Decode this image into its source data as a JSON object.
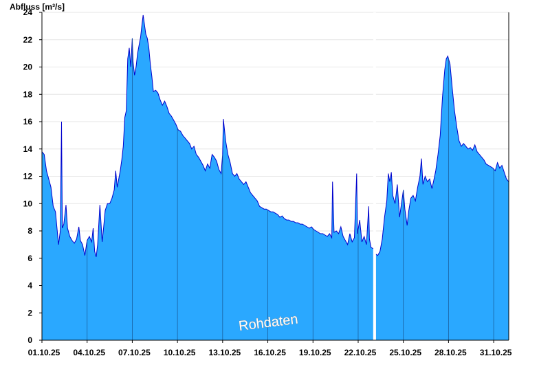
{
  "chart_data": {
    "type": "area",
    "ylabel": "Abfluss [m³/s]",
    "watermark": "Rohdaten",
    "ylim": [
      0,
      24
    ],
    "yticks": [
      0,
      2,
      4,
      6,
      8,
      10,
      12,
      14,
      16,
      18,
      20,
      22,
      24
    ],
    "xlim": [
      1.0,
      32.0
    ],
    "xticks": [
      {
        "x": 1.0,
        "label": "01.10.25"
      },
      {
        "x": 4.0,
        "label": "04.10.25"
      },
      {
        "x": 7.0,
        "label": "07.10.25"
      },
      {
        "x": 10.0,
        "label": "10.10.25"
      },
      {
        "x": 13.0,
        "label": "13.10.25"
      },
      {
        "x": 16.0,
        "label": "16.10.25"
      },
      {
        "x": 19.0,
        "label": "19.10.25"
      },
      {
        "x": 22.0,
        "label": "22.10.25"
      },
      {
        "x": 25.0,
        "label": "25.10.25"
      },
      {
        "x": 28.0,
        "label": "28.10.25"
      },
      {
        "x": 31.0,
        "label": "31.10.25"
      }
    ],
    "grid": true,
    "colors": {
      "fill": "#2aa8ff",
      "line": "#0000cc",
      "gap": "#ffffff",
      "grid": "#e6e6e6"
    },
    "gap": [
      23.0,
      23.18
    ],
    "series": [
      {
        "segments": [
          [
            [
              1.0,
              13.8
            ],
            [
              1.15,
              13.6
            ],
            [
              1.3,
              12.4
            ],
            [
              1.45,
              11.8
            ],
            [
              1.6,
              11.2
            ],
            [
              1.75,
              9.8
            ],
            [
              1.9,
              9.4
            ],
            [
              2.0,
              8.2
            ],
            [
              2.1,
              7.0
            ],
            [
              2.22,
              8.0
            ],
            [
              2.3,
              16.0
            ],
            [
              2.35,
              8.2
            ],
            [
              2.45,
              8.5
            ],
            [
              2.6,
              9.9
            ],
            [
              2.7,
              8.2
            ],
            [
              2.85,
              7.6
            ],
            [
              3.0,
              7.3
            ],
            [
              3.15,
              7.1
            ],
            [
              3.3,
              7.4
            ],
            [
              3.45,
              8.3
            ],
            [
              3.55,
              7.3
            ],
            [
              3.7,
              7.0
            ],
            [
              3.85,
              6.2
            ],
            [
              4.0,
              7.3
            ],
            [
              4.15,
              7.6
            ],
            [
              4.3,
              7.2
            ],
            [
              4.4,
              8.2
            ],
            [
              4.5,
              6.5
            ],
            [
              4.6,
              6.1
            ],
            [
              4.7,
              7.0
            ],
            [
              4.85,
              9.9
            ],
            [
              5.0,
              7.2
            ],
            [
              5.1,
              8.3
            ],
            [
              5.2,
              9.5
            ],
            [
              5.35,
              10.0
            ],
            [
              5.5,
              10.0
            ],
            [
              5.65,
              10.4
            ],
            [
              5.8,
              11.0
            ],
            [
              5.9,
              12.4
            ],
            [
              6.0,
              11.2
            ],
            [
              6.1,
              11.8
            ],
            [
              6.2,
              12.4
            ],
            [
              6.3,
              13.2
            ],
            [
              6.4,
              14.2
            ],
            [
              6.5,
              16.3
            ],
            [
              6.6,
              16.8
            ],
            [
              6.7,
              20.6
            ],
            [
              6.8,
              21.4
            ],
            [
              6.9,
              20.0
            ],
            [
              7.0,
              22.1
            ],
            [
              7.05,
              20.4
            ],
            [
              7.15,
              19.4
            ],
            [
              7.25,
              20.0
            ],
            [
              7.35,
              21.0
            ],
            [
              7.45,
              21.6
            ],
            [
              7.55,
              22.2
            ],
            [
              7.65,
              23.2
            ],
            [
              7.72,
              23.8
            ],
            [
              7.8,
              23.2
            ],
            [
              7.9,
              22.4
            ],
            [
              8.0,
              22.1
            ],
            [
              8.1,
              21.4
            ],
            [
              8.2,
              20.2
            ],
            [
              8.3,
              19.3
            ],
            [
              8.4,
              18.2
            ],
            [
              8.55,
              18.3
            ],
            [
              8.7,
              18.1
            ],
            [
              8.85,
              17.6
            ],
            [
              9.0,
              17.2
            ],
            [
              9.15,
              17.5
            ],
            [
              9.3,
              17.1
            ],
            [
              9.45,
              16.6
            ],
            [
              9.6,
              16.4
            ],
            [
              9.75,
              16.1
            ],
            [
              9.9,
              15.8
            ],
            [
              10.05,
              15.4
            ],
            [
              10.2,
              15.3
            ],
            [
              10.35,
              15.0
            ],
            [
              10.5,
              14.8
            ],
            [
              10.65,
              14.6
            ],
            [
              10.8,
              14.4
            ],
            [
              10.95,
              14.0
            ],
            [
              11.1,
              14.2
            ],
            [
              11.25,
              13.6
            ],
            [
              11.4,
              13.4
            ],
            [
              11.55,
              13.1
            ],
            [
              11.7,
              12.8
            ],
            [
              11.85,
              12.4
            ],
            [
              12.0,
              12.9
            ],
            [
              12.15,
              12.6
            ],
            [
              12.3,
              13.6
            ],
            [
              12.45,
              13.4
            ],
            [
              12.6,
              13.1
            ],
            [
              12.75,
              12.5
            ],
            [
              12.9,
              12.2
            ],
            [
              13.0,
              13.6
            ],
            [
              13.05,
              16.2
            ],
            [
              13.2,
              14.6
            ],
            [
              13.35,
              13.6
            ],
            [
              13.5,
              13.0
            ],
            [
              13.65,
              12.2
            ],
            [
              13.8,
              12.0
            ],
            [
              13.95,
              12.2
            ],
            [
              14.1,
              11.8
            ],
            [
              14.25,
              11.6
            ],
            [
              14.4,
              11.4
            ],
            [
              14.55,
              11.6
            ],
            [
              14.7,
              11.2
            ],
            [
              14.85,
              10.8
            ],
            [
              15.0,
              10.6
            ],
            [
              15.15,
              10.4
            ],
            [
              15.3,
              10.2
            ],
            [
              15.45,
              9.8
            ],
            [
              15.6,
              9.7
            ],
            [
              15.75,
              9.6
            ],
            [
              15.9,
              9.6
            ],
            [
              16.05,
              9.5
            ],
            [
              16.2,
              9.4
            ],
            [
              16.35,
              9.4
            ],
            [
              16.5,
              9.3
            ],
            [
              16.65,
              9.2
            ],
            [
              16.8,
              9.0
            ],
            [
              16.95,
              9.1
            ],
            [
              17.1,
              8.9
            ],
            [
              17.25,
              8.8
            ],
            [
              17.4,
              8.8
            ],
            [
              17.55,
              8.7
            ],
            [
              17.7,
              8.7
            ],
            [
              17.85,
              8.6
            ],
            [
              18.0,
              8.6
            ],
            [
              18.15,
              8.5
            ],
            [
              18.3,
              8.5
            ],
            [
              18.45,
              8.4
            ],
            [
              18.6,
              8.3
            ],
            [
              18.75,
              8.2
            ],
            [
              18.9,
              8.3
            ],
            [
              19.05,
              8.1
            ],
            [
              19.2,
              8.0
            ],
            [
              19.35,
              7.9
            ],
            [
              19.5,
              7.8
            ],
            [
              19.65,
              7.8
            ],
            [
              19.8,
              7.7
            ],
            [
              19.95,
              7.6
            ],
            [
              20.1,
              7.8
            ],
            [
              20.25,
              7.5
            ],
            [
              20.3,
              11.6
            ],
            [
              20.4,
              7.9
            ],
            [
              20.55,
              8.0
            ],
            [
              20.7,
              7.8
            ],
            [
              20.85,
              8.3
            ],
            [
              21.0,
              7.6
            ],
            [
              21.15,
              7.3
            ],
            [
              21.3,
              7.0
            ],
            [
              21.45,
              7.8
            ],
            [
              21.6,
              7.2
            ],
            [
              21.75,
              7.5
            ],
            [
              21.9,
              12.2
            ],
            [
              21.95,
              7.8
            ],
            [
              22.1,
              8.8
            ],
            [
              22.25,
              7.2
            ],
            [
              22.4,
              7.6
            ],
            [
              22.55,
              7.0
            ],
            [
              22.7,
              9.8
            ],
            [
              22.75,
              7.4
            ],
            [
              22.85,
              6.8
            ],
            [
              23.0,
              6.7
            ]
          ],
          [
            [
              23.18,
              6.3
            ],
            [
              23.3,
              6.2
            ],
            [
              23.45,
              6.5
            ],
            [
              23.6,
              7.4
            ],
            [
              23.75,
              9.0
            ],
            [
              23.9,
              10.2
            ],
            [
              24.0,
              12.2
            ],
            [
              24.1,
              11.6
            ],
            [
              24.2,
              12.3
            ],
            [
              24.3,
              10.6
            ],
            [
              24.45,
              10.0
            ],
            [
              24.6,
              11.4
            ],
            [
              24.75,
              9.0
            ],
            [
              24.85,
              9.8
            ],
            [
              25.0,
              11.0
            ],
            [
              25.1,
              9.6
            ],
            [
              25.25,
              8.4
            ],
            [
              25.35,
              9.4
            ],
            [
              25.5,
              10.4
            ],
            [
              25.65,
              10.6
            ],
            [
              25.8,
              10.2
            ],
            [
              25.95,
              11.2
            ],
            [
              26.1,
              12.0
            ],
            [
              26.2,
              13.3
            ],
            [
              26.3,
              11.4
            ],
            [
              26.45,
              12.0
            ],
            [
              26.6,
              11.6
            ],
            [
              26.75,
              11.8
            ],
            [
              26.9,
              11.1
            ],
            [
              27.0,
              11.6
            ],
            [
              27.15,
              12.4
            ],
            [
              27.3,
              13.6
            ],
            [
              27.45,
              15.0
            ],
            [
              27.6,
              17.8
            ],
            [
              27.75,
              19.8
            ],
            [
              27.85,
              20.6
            ],
            [
              27.95,
              20.8
            ],
            [
              28.1,
              20.2
            ],
            [
              28.25,
              18.4
            ],
            [
              28.4,
              16.8
            ],
            [
              28.55,
              15.6
            ],
            [
              28.7,
              14.6
            ],
            [
              28.85,
              14.2
            ],
            [
              29.0,
              14.4
            ],
            [
              29.15,
              14.2
            ],
            [
              29.3,
              14.0
            ],
            [
              29.45,
              14.1
            ],
            [
              29.6,
              13.9
            ],
            [
              29.75,
              14.3
            ],
            [
              29.9,
              13.8
            ],
            [
              30.05,
              13.6
            ],
            [
              30.2,
              13.4
            ],
            [
              30.35,
              13.2
            ],
            [
              30.5,
              12.9
            ],
            [
              30.65,
              12.8
            ],
            [
              30.8,
              12.7
            ],
            [
              30.95,
              12.6
            ],
            [
              31.1,
              12.4
            ],
            [
              31.25,
              13.0
            ],
            [
              31.4,
              12.6
            ],
            [
              31.55,
              12.8
            ],
            [
              31.7,
              12.3
            ],
            [
              31.85,
              11.8
            ],
            [
              32.0,
              11.6
            ]
          ]
        ]
      }
    ]
  }
}
